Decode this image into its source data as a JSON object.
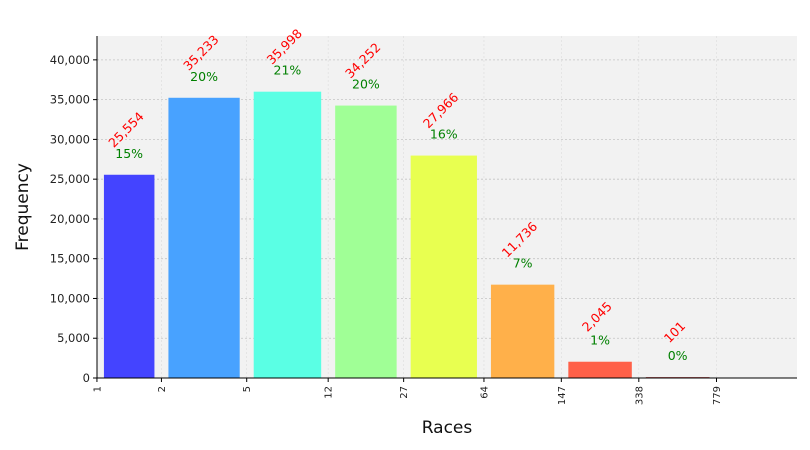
{
  "chart_data": {
    "type": "bar",
    "xlabel": "Races",
    "ylabel": "Frequency",
    "xscale": "log",
    "bin_edges": [
      1,
      2,
      5,
      12,
      27,
      64,
      147,
      338,
      779
    ],
    "bin_edge_labels": [
      "1",
      "2",
      "5",
      "12",
      "27",
      "64",
      "147",
      "338",
      "779"
    ],
    "values": [
      25554,
      35233,
      35998,
      34252,
      27966,
      11736,
      2045,
      101
    ],
    "count_labels": [
      "25,554",
      "35,233",
      "35,998",
      "34,252",
      "27,966",
      "11,736",
      "2,045",
      "101"
    ],
    "percent_labels": [
      "15%",
      "20%",
      "21%",
      "20%",
      "16%",
      "7%",
      "1%",
      "0%"
    ],
    "colors": [
      "#4444ff",
      "#48a2ff",
      "#5affe4",
      "#a0ff96",
      "#e8ff50",
      "#ffb04a",
      "#ff6048",
      "#a81818"
    ],
    "count_label_color": "#ff0000",
    "percent_label_color": "#008000",
    "ylim": [
      0,
      43000
    ],
    "yticks": [
      0,
      5000,
      10000,
      15000,
      20000,
      25000,
      30000,
      35000,
      40000
    ],
    "ytick_labels": [
      "0",
      "5,000",
      "10,000",
      "15,000",
      "20,000",
      "25,000",
      "30,000",
      "35,000",
      "40,000"
    ],
    "grid": true,
    "background": "#f2f2f2"
  }
}
